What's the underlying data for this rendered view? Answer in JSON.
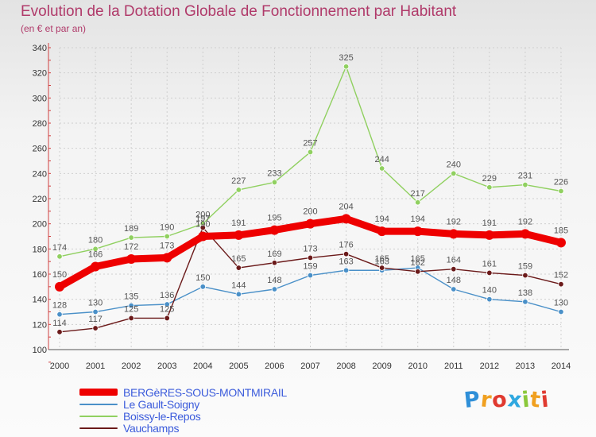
{
  "chart_data": {
    "type": "line",
    "title": "Evolution de la Dotation Globale de Fonctionnement par Habitant",
    "subtitle": "(en € et par an)",
    "x": [
      "2000",
      "2001",
      "2002",
      "2003",
      "2004",
      "2005",
      "2006",
      "2007",
      "2008",
      "2009",
      "2010",
      "2011",
      "2012",
      "2013",
      "2014"
    ],
    "ylim": [
      100,
      340
    ],
    "yticks": [
      100,
      120,
      140,
      160,
      180,
      200,
      220,
      240,
      260,
      280,
      300,
      320,
      340
    ],
    "grid": true,
    "legend_position": "bottom-left",
    "series": [
      {
        "name": "Le Gault-Soigny",
        "color": "#4a90c8",
        "values": [
          128,
          130,
          135,
          136,
          150,
          144,
          148,
          159,
          163,
          163,
          165,
          148,
          140,
          138,
          130
        ]
      },
      {
        "name": "Boissy-le-Repos",
        "color": "#90d060",
        "values": [
          174,
          180,
          189,
          190,
          200,
          227,
          233,
          257,
          325,
          244,
          217,
          240,
          229,
          231,
          226
        ]
      },
      {
        "name": "Vauchamps",
        "color": "#6b1a1a",
        "values": [
          114,
          117,
          125,
          125,
          197,
          165,
          169,
          173,
          176,
          165,
          162,
          164,
          161,
          159,
          152
        ]
      },
      {
        "name": "BERGèRES-SOUS-MONTMIRAIL",
        "color": "#ee0000",
        "values": [
          150,
          166,
          172,
          173,
          190,
          191,
          195,
          200,
          204,
          194,
          194,
          192,
          191,
          192,
          185
        ]
      }
    ],
    "legend": [
      {
        "name": "BERGèRES-SOUS-MONTMIRAIL",
        "color": "#ee0000"
      },
      {
        "name": "Le Gault-Soigny",
        "color": "#4a90c8"
      },
      {
        "name": "Boissy-le-Repos",
        "color": "#90d060"
      },
      {
        "name": "Vauchamps",
        "color": "#6b1a1a"
      }
    ]
  },
  "logo": {
    "letters": [
      "P",
      "r",
      "o",
      "x",
      "i",
      "t",
      "i"
    ],
    "colors": [
      "#2f8fd8",
      "#f0a020",
      "#e03a30",
      "#2fa8e0",
      "#8ac83a",
      "#f0a020",
      "#e03a30"
    ]
  }
}
